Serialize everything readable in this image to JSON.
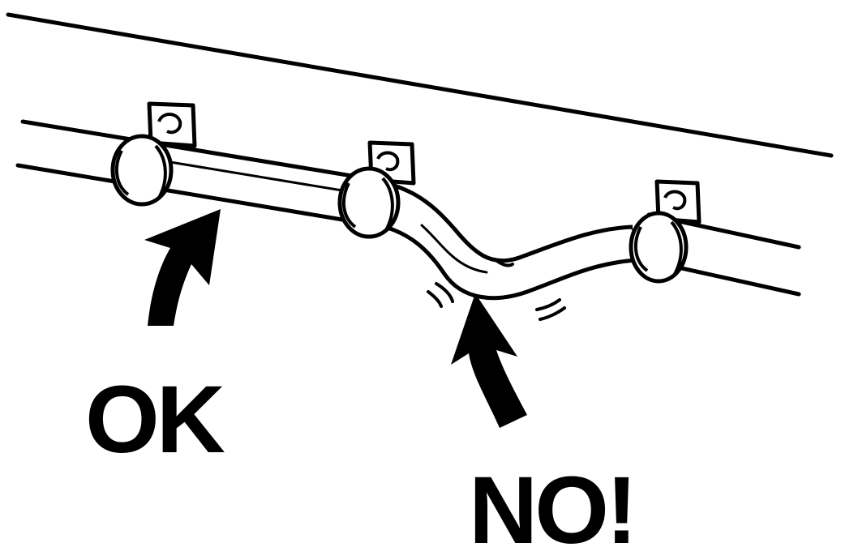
{
  "labels": {
    "ok": "OK",
    "no": "NO!"
  },
  "colors": {
    "ink": "#000000",
    "paper": "#ffffff"
  },
  "icons": {
    "ok_arrow": "curved-up-arrow-icon",
    "no_arrow": "curved-up-arrow-icon",
    "clip": "pipe-clip-icon"
  }
}
